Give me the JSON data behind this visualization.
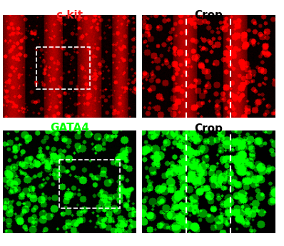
{
  "title_top_left": "c-kit",
  "title_top_right": "Crop",
  "title_bottom_left": "GATA4",
  "title_bottom_right": "Crop",
  "title_color_left_top": "#ff2222",
  "title_color_left_bottom": "#00ff00",
  "title_color_right": "#ffffff",
  "background_color": "#ffffff",
  "fig_width": 3.98,
  "fig_height": 3.45,
  "dpi": 100,
  "num_red_dots": 400,
  "num_green_dots": 120,
  "seed": 42
}
